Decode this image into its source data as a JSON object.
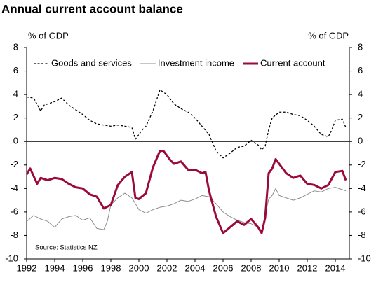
{
  "chart_data": {
    "type": "line",
    "title": "Annual current account balance",
    "y_label": "% of GDP",
    "y2_label": "% of GDP",
    "annotation": "Source: Statistics NZ",
    "xlim": [
      1992,
      2015
    ],
    "xticks": [
      1992,
      1994,
      1996,
      1998,
      2000,
      2002,
      2004,
      2006,
      2008,
      2010,
      2012,
      2014
    ],
    "ylim": [
      -10,
      8
    ],
    "yticks": [
      -10,
      -8,
      -6,
      -4,
      -2,
      0,
      2,
      4,
      6,
      8
    ],
    "y2lim": [
      -10,
      8
    ],
    "y2ticks": [
      -10,
      -8,
      -6,
      -4,
      -2,
      0,
      2,
      4,
      6,
      8
    ],
    "zero_line": true,
    "legend": "top",
    "series": [
      {
        "name": "Goods and services",
        "color": "#000000",
        "line_style": "dashed",
        "line_width": 1.3,
        "x": [
          1992.0,
          1992.5,
          1993.0,
          1993.25,
          1993.5,
          1994.0,
          1994.5,
          1995.0,
          1995.5,
          1996.0,
          1996.5,
          1997.0,
          1997.5,
          1998.0,
          1998.5,
          1999.0,
          1999.5,
          1999.75,
          2000.25,
          2000.5,
          2001.0,
          2001.5,
          2002.0,
          2002.5,
          2003.0,
          2003.5,
          2004.0,
          2004.5,
          2005.0,
          2005.5,
          2006.0,
          2006.5,
          2007.0,
          2007.5,
          2008.0,
          2008.5,
          2008.75,
          2009.0,
          2009.25,
          2009.5,
          2010.0,
          2010.5,
          2011.0,
          2011.5,
          2012.0,
          2012.5,
          2013.0,
          2013.5,
          2013.75,
          2014.0,
          2014.5,
          2014.75
        ],
        "values": [
          3.8,
          3.7,
          2.6,
          3.1,
          3.2,
          3.4,
          3.7,
          3.1,
          2.7,
          2.3,
          1.8,
          1.5,
          1.4,
          1.3,
          1.4,
          1.3,
          1.2,
          0.2,
          1.0,
          1.3,
          2.6,
          4.4,
          4.0,
          3.2,
          2.8,
          2.5,
          2.0,
          1.3,
          0.6,
          -0.8,
          -1.4,
          -1.0,
          -0.5,
          -0.4,
          0.1,
          -0.3,
          -0.7,
          -0.4,
          1.0,
          2.0,
          2.5,
          2.5,
          2.3,
          2.2,
          1.8,
          1.3,
          0.6,
          0.4,
          1.0,
          1.8,
          1.9,
          1.2
        ]
      },
      {
        "name": "Investment income",
        "color": "#8c8c8c",
        "line_style": "solid",
        "line_width": 1,
        "x": [
          1992.0,
          1992.5,
          1993.0,
          1993.5,
          1994.0,
          1994.5,
          1995.0,
          1995.5,
          1996.0,
          1996.5,
          1997.0,
          1997.5,
          1997.75,
          1998.0,
          1998.5,
          1999.0,
          1999.5,
          2000.0,
          2000.5,
          2001.0,
          2001.5,
          2002.0,
          2002.5,
          2003.0,
          2003.5,
          2004.0,
          2004.5,
          2005.0,
          2005.5,
          2006.0,
          2006.5,
          2007.0,
          2007.5,
          2008.0,
          2008.5,
          2008.75,
          2009.0,
          2009.25,
          2009.5,
          2009.75,
          2010.0,
          2010.5,
          2011.0,
          2011.5,
          2012.0,
          2012.5,
          2013.0,
          2013.5,
          2014.0,
          2014.5,
          2014.75
        ],
        "values": [
          -6.8,
          -6.3,
          -6.6,
          -6.8,
          -7.3,
          -6.6,
          -6.4,
          -6.3,
          -6.7,
          -6.5,
          -7.4,
          -7.5,
          -6.8,
          -5.4,
          -4.8,
          -4.4,
          -4.8,
          -5.8,
          -6.1,
          -5.8,
          -5.6,
          -5.5,
          -5.3,
          -5.0,
          -5.1,
          -4.9,
          -4.6,
          -4.7,
          -5.3,
          -6.0,
          -6.4,
          -6.7,
          -6.9,
          -7.0,
          -7.3,
          -7.6,
          -6.3,
          -4.9,
          -4.6,
          -4.0,
          -4.6,
          -4.8,
          -5.0,
          -4.8,
          -4.5,
          -4.2,
          -4.3,
          -4.0,
          -3.9,
          -4.1,
          -4.2
        ]
      },
      {
        "name": "Current account",
        "color": "#9b0a3b",
        "line_style": "solid",
        "line_width": 3,
        "x": [
          1992.0,
          1992.25,
          1992.75,
          1993.0,
          1993.5,
          1994.0,
          1994.5,
          1995.0,
          1995.5,
          1996.0,
          1996.5,
          1997.0,
          1997.5,
          1998.0,
          1998.5,
          1999.0,
          1999.25,
          1999.5,
          1999.75,
          2000.0,
          2000.5,
          2001.0,
          2001.5,
          2001.75,
          2002.25,
          2002.5,
          2003.0,
          2003.5,
          2004.0,
          2004.5,
          2004.75,
          2005.0,
          2005.5,
          2006.0,
          2006.5,
          2007.0,
          2007.5,
          2008.0,
          2008.5,
          2008.75,
          2009.0,
          2009.25,
          2009.5,
          2009.75,
          2010.0,
          2010.5,
          2011.0,
          2011.5,
          2012.0,
          2012.5,
          2013.0,
          2013.5,
          2014.0,
          2014.5,
          2014.75
        ],
        "values": [
          -2.8,
          -2.3,
          -3.6,
          -3.1,
          -3.3,
          -3.1,
          -3.2,
          -3.6,
          -3.9,
          -4.0,
          -4.5,
          -4.7,
          -5.7,
          -5.4,
          -3.7,
          -3.0,
          -2.8,
          -2.6,
          -4.8,
          -4.9,
          -4.4,
          -2.2,
          -0.8,
          -0.8,
          -1.6,
          -1.9,
          -1.7,
          -2.4,
          -2.4,
          -2.7,
          -2.6,
          -4.2,
          -6.4,
          -7.8,
          -7.3,
          -6.8,
          -7.1,
          -6.6,
          -7.3,
          -7.8,
          -6.5,
          -2.7,
          -2.3,
          -1.5,
          -1.9,
          -2.7,
          -3.1,
          -2.9,
          -3.6,
          -3.7,
          -4.0,
          -3.7,
          -2.6,
          -2.5,
          -3.3
        ]
      }
    ]
  }
}
